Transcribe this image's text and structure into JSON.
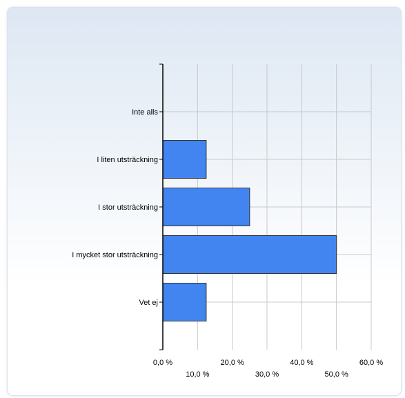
{
  "chart_data": {
    "type": "bar",
    "orientation": "horizontal",
    "categories": [
      "Inte alls",
      "I liten utsträckning",
      "I stor utsträckning",
      "I mycket stor utsträckning",
      "Vet ej"
    ],
    "values": [
      0.0,
      12.5,
      25.0,
      50.0,
      12.5
    ],
    "xlim": [
      0,
      60
    ],
    "xticks": [
      {
        "value": 0,
        "label": "0,0 %"
      },
      {
        "value": 10,
        "label": "10,0 %"
      },
      {
        "value": 20,
        "label": "20,0 %"
      },
      {
        "value": 30,
        "label": "30,0 %"
      },
      {
        "value": 40,
        "label": "40,0 %"
      },
      {
        "value": 50,
        "label": "50,0 %"
      },
      {
        "value": 60,
        "label": "60,0 %"
      }
    ],
    "title": "",
    "xlabel": "",
    "ylabel": "",
    "grid": true,
    "legend": "none",
    "bar_color": "#4285f0",
    "bar_border_color": "#333333"
  }
}
